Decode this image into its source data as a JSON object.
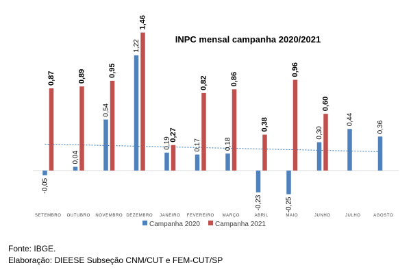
{
  "chart_data": {
    "type": "bar",
    "title": "INPC mensal campanha 2020/2021",
    "categories": [
      "SETEMBRO",
      "OUTUBRO",
      "NOVEMBRO",
      "DEZEMBRO",
      "JANEIRO",
      "FEVEREIRO",
      "MARÇO",
      "ABRIL",
      "MAIO",
      "JUNHO",
      "JULHO",
      "AGOSTO"
    ],
    "series": [
      {
        "name": "Campanha 2020",
        "color": "#4f81bd",
        "values": [
          -0.05,
          0.04,
          0.54,
          1.22,
          0.19,
          0.17,
          0.18,
          -0.23,
          -0.25,
          0.3,
          0.44,
          0.36
        ],
        "labels": [
          "-0,05",
          "0,04",
          "0,54",
          "1,22",
          "0,19",
          "0,17",
          "0,18",
          "-0,23",
          "-0,25",
          "0,30",
          "0,44",
          "0,36"
        ]
      },
      {
        "name": "Campanha 2021",
        "color": "#c0504d",
        "values": [
          0.87,
          0.89,
          0.95,
          1.46,
          0.27,
          0.82,
          0.86,
          0.38,
          0.96,
          0.6,
          null,
          null
        ],
        "labels": [
          "0,87",
          "0,89",
          "0,95",
          "1,46",
          "0,27",
          "0,82",
          "0,86",
          "0,38",
          "0,96",
          "0,60",
          "",
          ""
        ]
      }
    ],
    "trendline": {
      "series": "Campanha 2020",
      "style": "dotted",
      "color": "#2e75b6",
      "start": 0.28,
      "end": 0.2
    },
    "ylim": [
      -0.3,
      1.5
    ],
    "grid": false,
    "legend": "bottom",
    "xlabel": "",
    "ylabel": ""
  },
  "footer": {
    "source": "Fonte: IBGE.",
    "credit": "Elaboração: DIEESE Subseção CNM/CUT e FEM-CUT/SP"
  }
}
